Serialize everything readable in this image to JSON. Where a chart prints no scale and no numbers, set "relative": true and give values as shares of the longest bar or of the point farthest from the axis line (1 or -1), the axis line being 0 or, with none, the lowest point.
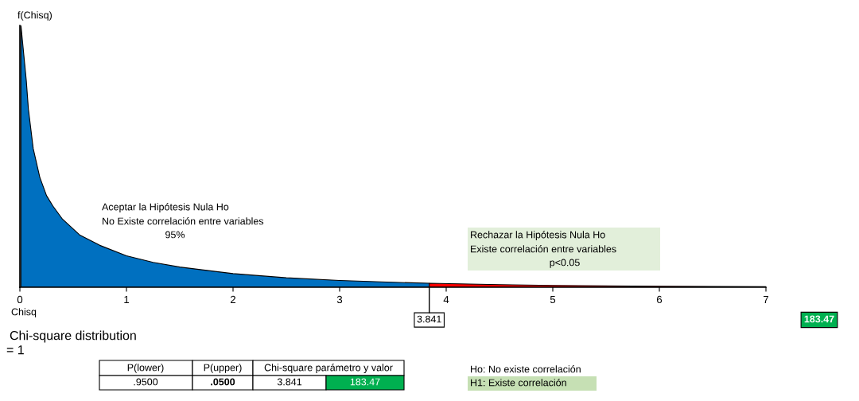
{
  "chart_data": {
    "type": "area",
    "xlabel": "Chisq",
    "ylabel": "f(Chisq)",
    "relative": true,
    "xlim": [
      0,
      7
    ],
    "xticks": [
      0,
      1,
      2,
      3,
      4,
      5,
      6,
      7
    ],
    "tick_labels": "x",
    "series": [
      {
        "color": "#0070c0",
        "x": [
          0.01,
          0.06,
          0.08,
          0.125,
          0.187,
          0.25,
          0.31,
          0.4,
          0.56,
          0.75,
          1,
          1.25,
          1.5,
          2,
          2.5,
          3,
          3.5,
          3.841
        ],
        "values": [
          1,
          0.79,
          0.68,
          0.53,
          0.42,
          0.35,
          0.31,
          0.26,
          0.2,
          0.16,
          0.12,
          0.095,
          0.077,
          0.052,
          0.036,
          0.026,
          0.019,
          0.015
        ]
      },
      {
        "color": "#ff0000",
        "x": [
          3.841,
          4.5,
          5,
          6,
          7
        ],
        "values": [
          0.015,
          0.01,
          0.007,
          0.004,
          0.002
        ]
      }
    ],
    "ref_lines": [
      {
        "axis": "x",
        "value": 3.841,
        "label": "3.841"
      }
    ],
    "annotations": [
      "Aceptar la Hipótesis Nula Ho",
      "No Existe correlación entre variables",
      "95%",
      "Rechazar la Hipótesis Nula Ho",
      "Existe correlación entre variables",
      "p<0.05",
      "183.47",
      "Chi-square distribution",
      "= 1",
      "P(lower)",
      "P(upper)",
      "Chi-square parámetro y valor",
      ".9500",
      ".0500",
      "3.841",
      "183.47",
      "Ho: No existe correlación",
      "H1: Existe correlación"
    ]
  }
}
